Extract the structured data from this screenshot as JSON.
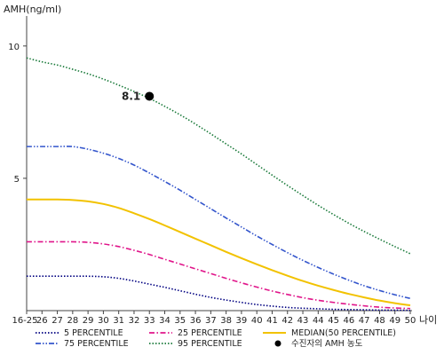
{
  "chart_data": {
    "type": "line",
    "ylabel": "AMH(ng/ml)",
    "xlabel": "나이",
    "categories": [
      "16-25",
      "26",
      "27",
      "28",
      "29",
      "30",
      "31",
      "32",
      "33",
      "34",
      "35",
      "36",
      "37",
      "38",
      "39",
      "40",
      "41",
      "42",
      "43",
      "44",
      "45",
      "46",
      "47",
      "48",
      "49",
      "50"
    ],
    "ylim": [
      0,
      11
    ],
    "yticks": [
      5,
      10
    ],
    "grid": false,
    "legend_position": "bottom",
    "series": [
      {
        "name": "5 PERCENTILE",
        "color": "#000080",
        "dash": "dotted",
        "values": [
          1.3,
          1.3,
          1.3,
          1.3,
          1.3,
          1.28,
          1.22,
          1.12,
          1.0,
          0.88,
          0.75,
          0.62,
          0.5,
          0.4,
          0.31,
          0.23,
          0.17,
          0.12,
          0.09,
          0.07,
          0.05,
          0.04,
          0.03,
          0.02,
          0.02,
          0.01
        ]
      },
      {
        "name": "25 PERCENTILE",
        "color": "#e0158a",
        "dash": "dashdot",
        "values": [
          2.6,
          2.6,
          2.6,
          2.6,
          2.58,
          2.52,
          2.42,
          2.28,
          2.12,
          1.94,
          1.76,
          1.58,
          1.4,
          1.22,
          1.05,
          0.89,
          0.74,
          0.61,
          0.49,
          0.39,
          0.31,
          0.24,
          0.18,
          0.13,
          0.1,
          0.08
        ]
      },
      {
        "name": "MEDIAN(50 PERCENTILE)",
        "color": "#f2c200",
        "dash": "solid",
        "values": [
          4.2,
          4.2,
          4.2,
          4.18,
          4.13,
          4.03,
          3.88,
          3.68,
          3.46,
          3.22,
          2.97,
          2.72,
          2.47,
          2.22,
          1.98,
          1.75,
          1.53,
          1.32,
          1.12,
          0.94,
          0.78,
          0.63,
          0.5,
          0.38,
          0.28,
          0.2
        ]
      },
      {
        "name": "75 PERCENTILE",
        "color": "#3355cc",
        "dash": "dashdotdot",
        "values": [
          6.2,
          6.2,
          6.2,
          6.2,
          6.1,
          5.95,
          5.75,
          5.5,
          5.2,
          4.88,
          4.55,
          4.2,
          3.85,
          3.5,
          3.16,
          2.82,
          2.5,
          2.19,
          1.9,
          1.63,
          1.38,
          1.15,
          0.94,
          0.76,
          0.6,
          0.46
        ]
      },
      {
        "name": "95 PERCENTILE",
        "color": "#1a7a3a",
        "dash": "dotted",
        "values": [
          9.55,
          9.4,
          9.28,
          9.12,
          8.95,
          8.75,
          8.52,
          8.28,
          8.02,
          7.72,
          7.4,
          7.05,
          6.68,
          6.3,
          5.92,
          5.52,
          5.12,
          4.73,
          4.35,
          3.98,
          3.63,
          3.3,
          2.99,
          2.7,
          2.42,
          2.15
        ]
      }
    ],
    "marker": {
      "name": "수진자의 AMH 농도",
      "x": "33",
      "y": 8.1,
      "label": "8.1",
      "color": "#000000"
    }
  }
}
